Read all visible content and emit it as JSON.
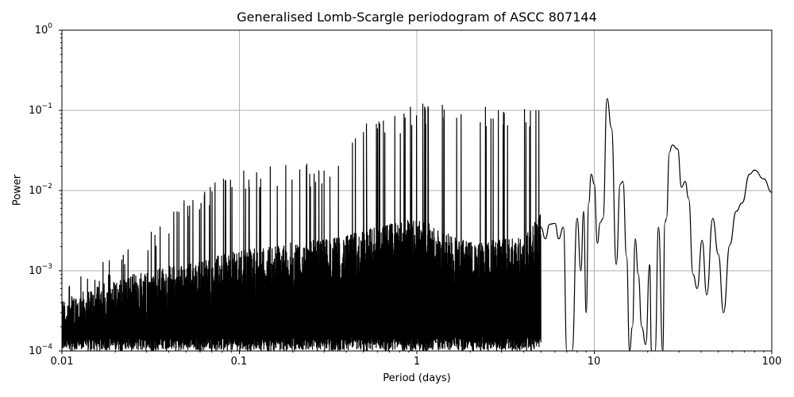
{
  "chart_data": {
    "type": "line",
    "title": "Generalised Lomb-Scargle periodogram of ASCC 807144",
    "xlabel": "Period (days)",
    "ylabel": "Power",
    "xscale": "log",
    "yscale": "log",
    "xlim": [
      0.01,
      100
    ],
    "ylim": [
      0.0001,
      1
    ],
    "grid": true,
    "x_ticks": [
      "0.01",
      "0.1",
      "1",
      "10",
      "100"
    ],
    "y_ticks": [
      {
        "base": "10",
        "exp": "0"
      },
      {
        "base": "10",
        "exp": "−1"
      },
      {
        "base": "10",
        "exp": "−2"
      },
      {
        "base": "10",
        "exp": "−3"
      },
      {
        "base": "10",
        "exp": "−4"
      }
    ],
    "line_color": "#000000",
    "grid_color": "#b0b0b0",
    "notable_peaks": [
      {
        "period": 0.5,
        "power": 0.053
      },
      {
        "period": 0.52,
        "power": 0.068
      },
      {
        "period": 0.92,
        "power": 0.11
      },
      {
        "period": 1.08,
        "power": 0.12
      },
      {
        "period": 9.5,
        "power": 0.016
      },
      {
        "period": 11.8,
        "power": 0.14
      },
      {
        "period": 14.5,
        "power": 0.013
      },
      {
        "period": 27.5,
        "power": 0.037
      },
      {
        "period": 32.5,
        "power": 0.013
      },
      {
        "period": 80,
        "power": 0.018
      }
    ],
    "smooth_curve": [
      [
        5.0,
        0.0035
      ],
      [
        5.3,
        0.0025
      ],
      [
        5.6,
        0.0038
      ],
      [
        6.0,
        0.0039
      ],
      [
        6.3,
        0.0025
      ],
      [
        6.7,
        0.0035
      ],
      [
        7.0,
        0.0001
      ],
      [
        7.5,
        0.0001
      ],
      [
        8.0,
        0.0045
      ],
      [
        8.4,
        0.001
      ],
      [
        8.7,
        0.0055
      ],
      [
        9.0,
        0.0003
      ],
      [
        9.3,
        0.007
      ],
      [
        9.6,
        0.016
      ],
      [
        10.0,
        0.012
      ],
      [
        10.4,
        0.0022
      ],
      [
        10.8,
        0.004
      ],
      [
        11.2,
        0.0045
      ],
      [
        11.8,
        0.14
      ],
      [
        12.5,
        0.06
      ],
      [
        13.3,
        0.0012
      ],
      [
        14.0,
        0.012
      ],
      [
        14.5,
        0.013
      ],
      [
        15.2,
        0.0015
      ],
      [
        15.8,
        0.0001
      ],
      [
        16.4,
        0.0002
      ],
      [
        17.0,
        0.0025
      ],
      [
        17.7,
        0.0009
      ],
      [
        18.5,
        0.0002
      ],
      [
        19.5,
        0.00012
      ],
      [
        20.5,
        0.0012
      ],
      [
        21.0,
        0.0001
      ],
      [
        22.0,
        0.0001
      ],
      [
        23.0,
        0.0035
      ],
      [
        24.3,
        0.0001
      ],
      [
        25.0,
        0.004
      ],
      [
        25.5,
        0.0045
      ],
      [
        26.5,
        0.03
      ],
      [
        27.5,
        0.037
      ],
      [
        29.5,
        0.033
      ],
      [
        31.0,
        0.011
      ],
      [
        32.5,
        0.013
      ],
      [
        34.0,
        0.008
      ],
      [
        36.0,
        0.0009
      ],
      [
        38.0,
        0.0006
      ],
      [
        40.5,
        0.0024
      ],
      [
        43.0,
        0.0005
      ],
      [
        46.5,
        0.0045
      ],
      [
        50.0,
        0.0016
      ],
      [
        53.5,
        0.0003
      ],
      [
        58.0,
        0.0021
      ],
      [
        63.0,
        0.0055
      ],
      [
        68.0,
        0.007
      ],
      [
        75.0,
        0.016
      ],
      [
        80.0,
        0.018
      ],
      [
        90.0,
        0.014
      ],
      [
        100.0,
        0.0095
      ]
    ],
    "noise_floor_envelope": [
      [
        0.01,
        0.0003
      ],
      [
        0.02,
        0.0005
      ],
      [
        0.03,
        0.0007
      ],
      [
        0.05,
        0.0008
      ],
      [
        0.1,
        0.0012
      ],
      [
        0.2,
        0.0015
      ],
      [
        0.4,
        0.0018
      ],
      [
        0.5,
        0.0022
      ],
      [
        1.0,
        0.003
      ],
      [
        2.0,
        0.0015
      ],
      [
        4.0,
        0.0018
      ],
      [
        5.0,
        0.0035
      ]
    ],
    "harmonic_peaks_envelope": [
      [
        0.012,
        0.001
      ],
      [
        0.02,
        0.0015
      ],
      [
        0.03,
        0.0028
      ],
      [
        0.04,
        0.0055
      ],
      [
        0.06,
        0.011
      ],
      [
        0.08,
        0.015
      ],
      [
        0.1,
        0.018
      ],
      [
        0.15,
        0.02
      ],
      [
        0.2,
        0.023
      ],
      [
        0.3,
        0.02
      ],
      [
        0.35,
        0.02
      ],
      [
        0.5,
        0.068
      ],
      [
        0.9,
        0.11
      ],
      [
        1.08,
        0.12
      ]
    ]
  }
}
